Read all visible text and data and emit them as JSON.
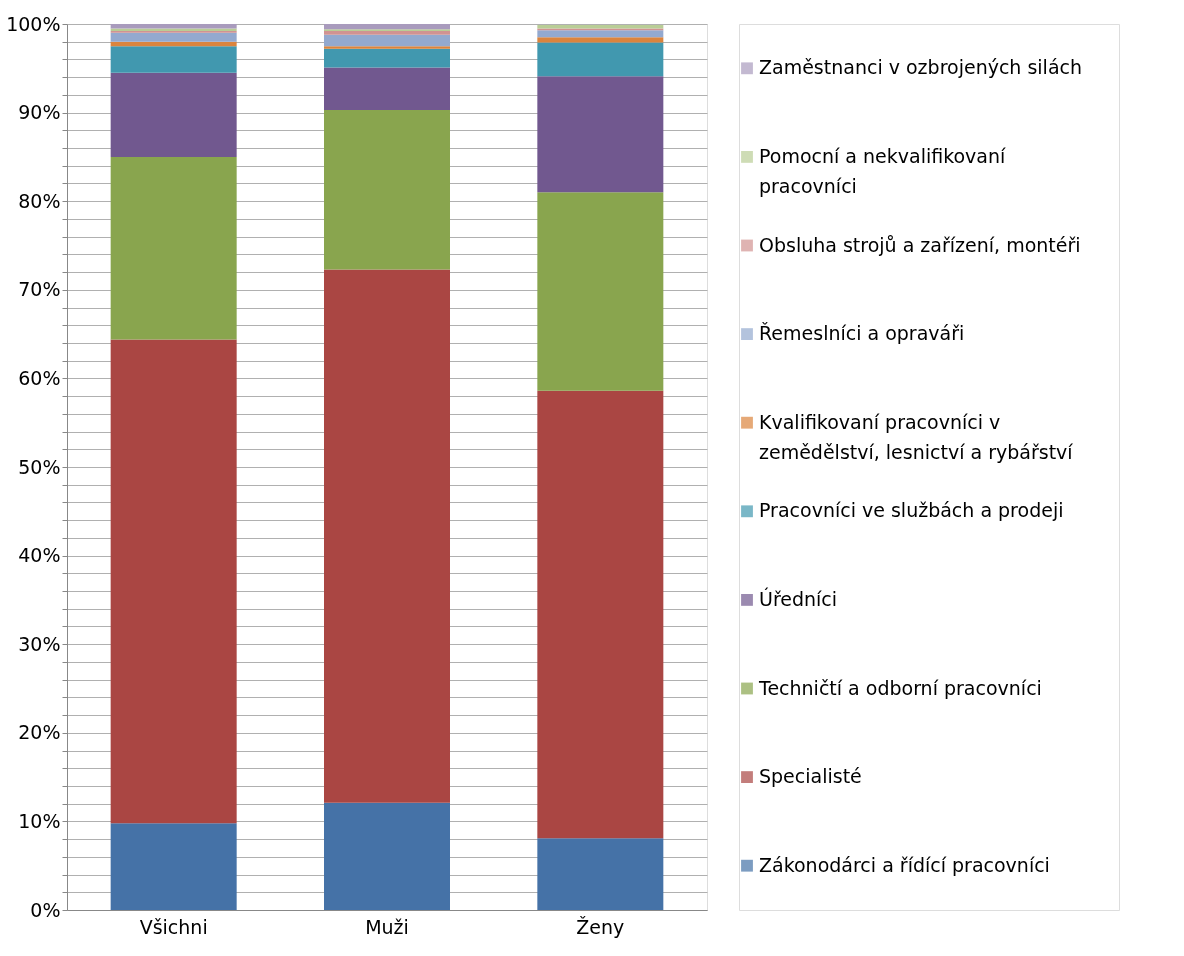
{
  "chart_data": {
    "type": "bar",
    "stacked": true,
    "categories": [
      "Všichni",
      "Muži",
      "Ženy"
    ],
    "ylim": [
      0,
      100
    ],
    "yticks": [
      {
        "value": 0,
        "label": "0%"
      },
      {
        "value": 2,
        "label": null
      },
      {
        "value": 4,
        "label": null
      },
      {
        "value": 6,
        "label": null
      },
      {
        "value": 8,
        "label": null
      },
      {
        "value": 10,
        "label": "10%"
      },
      {
        "value": 12,
        "label": null
      },
      {
        "value": 14,
        "label": null
      },
      {
        "value": 16,
        "label": null
      },
      {
        "value": 18,
        "label": null
      },
      {
        "value": 20,
        "label": "20%"
      },
      {
        "value": 22,
        "label": null
      },
      {
        "value": 24,
        "label": null
      },
      {
        "value": 26,
        "label": null
      },
      {
        "value": 28,
        "label": null
      },
      {
        "value": 30,
        "label": "30%"
      },
      {
        "value": 32,
        "label": null
      },
      {
        "value": 34,
        "label": null
      },
      {
        "value": 36,
        "label": null
      },
      {
        "value": 38,
        "label": null
      },
      {
        "value": 40,
        "label": "40%"
      },
      {
        "value": 42,
        "label": null
      },
      {
        "value": 44,
        "label": null
      },
      {
        "value": 46,
        "label": null
      },
      {
        "value": 48,
        "label": null
      },
      {
        "value": 50,
        "label": "50%"
      },
      {
        "value": 52,
        "label": null
      },
      {
        "value": 54,
        "label": null
      },
      {
        "value": 56,
        "label": null
      },
      {
        "value": 58,
        "label": null
      },
      {
        "value": 60,
        "label": "60%"
      },
      {
        "value": 62,
        "label": null
      },
      {
        "value": 64,
        "label": null
      },
      {
        "value": 66,
        "label": null
      },
      {
        "value": 68,
        "label": null
      },
      {
        "value": 70,
        "label": "70%"
      },
      {
        "value": 72,
        "label": null
      },
      {
        "value": 74,
        "label": null
      },
      {
        "value": 76,
        "label": null
      },
      {
        "value": 78,
        "label": null
      },
      {
        "value": 80,
        "label": "80%"
      },
      {
        "value": 82,
        "label": null
      },
      {
        "value": 84,
        "label": null
      },
      {
        "value": 86,
        "label": null
      },
      {
        "value": 88,
        "label": null
      },
      {
        "value": 90,
        "label": "90%"
      },
      {
        "value": 92,
        "label": null
      },
      {
        "value": 94,
        "label": null
      },
      {
        "value": 96,
        "label": null
      },
      {
        "value": 98,
        "label": null
      },
      {
        "value": 100,
        "label": "100%"
      }
    ],
    "grid": "y",
    "legend": "right",
    "series": [
      {
        "name": "Zákonodárci a řídící pracovníci",
        "color": "#4572a7",
        "values": [
          9.8,
          12.1,
          8.1
        ]
      },
      {
        "name": "Specialisté",
        "color": "#aa4643",
        "values": [
          54.6,
          60.2,
          50.5
        ]
      },
      {
        "name": "Techničtí a odborní pracovníci",
        "color": "#89a54e",
        "values": [
          20.6,
          18.0,
          22.4
        ]
      },
      {
        "name": "Úředníci",
        "color": "#71588f",
        "values": [
          9.5,
          4.8,
          13.1
        ]
      },
      {
        "name": "Pracovníci ve službách a prodeji",
        "color": "#4198af",
        "values": [
          3.0,
          2.1,
          3.8
        ]
      },
      {
        "name": "Kvalifikovaní pracovníci v zemědělství, lesnictví a rybářství",
        "color": "#db843d",
        "values": [
          0.5,
          0.3,
          0.6
        ]
      },
      {
        "name": "Řemeslníci a opraváři",
        "color": "#93a9cf",
        "values": [
          1.0,
          1.3,
          0.8
        ]
      },
      {
        "name": "Obsluha strojů a zařízení, montéři",
        "color": "#d19392",
        "values": [
          0.2,
          0.4,
          0.2
        ]
      },
      {
        "name": "Pomocní a nekvalifikovaní pracovníci",
        "color": "#b9cd96",
        "values": [
          0.3,
          0.2,
          0.4
        ]
      },
      {
        "name": "Zaměstnanci v ozbrojených silách",
        "color": "#a99bbd",
        "values": [
          0.5,
          0.6,
          null
        ]
      }
    ]
  }
}
